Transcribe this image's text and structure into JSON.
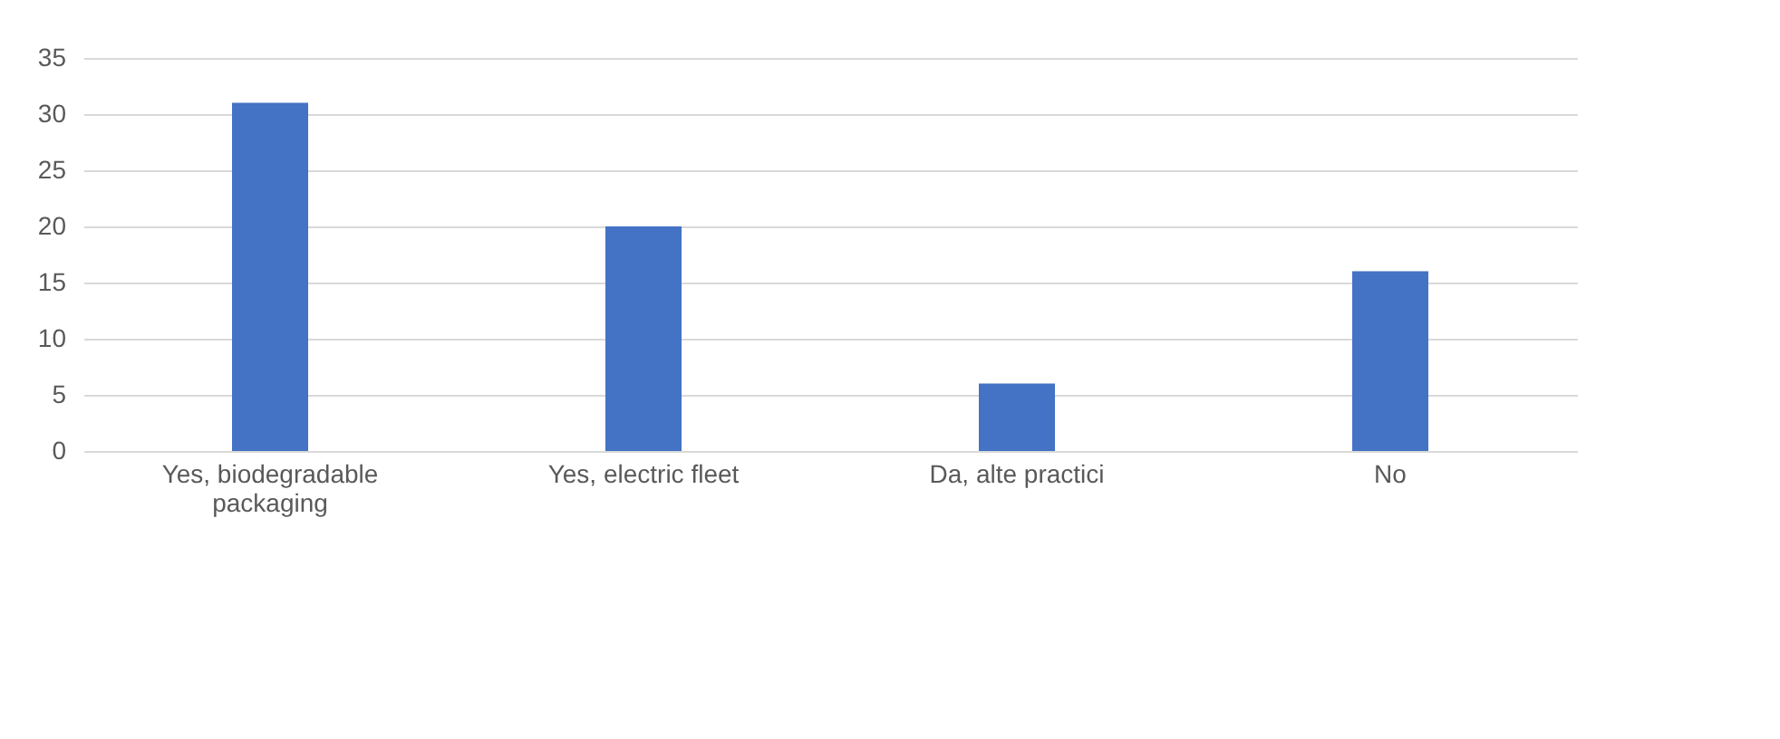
{
  "chart_data": {
    "type": "bar",
    "categories": [
      "Yes, biodegradable packaging",
      "Yes, electric fleet",
      "Da, alte practici",
      "No"
    ],
    "values": [
      31,
      20,
      6,
      16
    ],
    "color": "#4472c4",
    "ylim": [
      0,
      35
    ],
    "yticks": [
      0,
      5,
      10,
      15,
      20,
      25,
      30,
      35
    ],
    "grid": "y"
  }
}
